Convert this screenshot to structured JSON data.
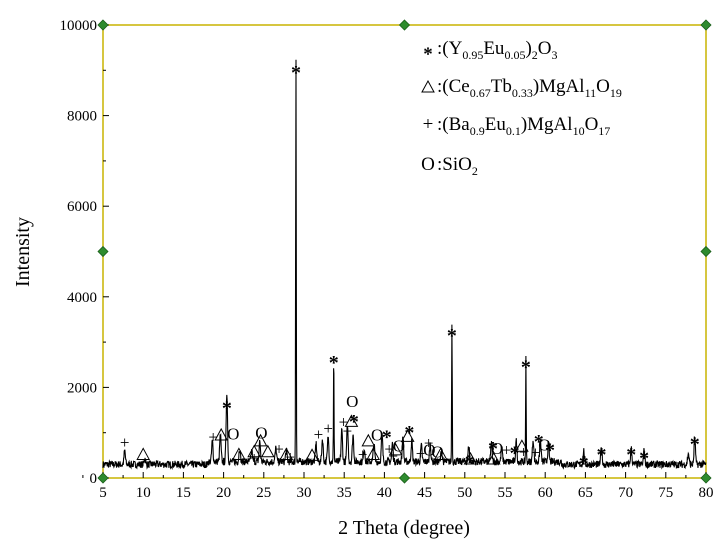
{
  "chart_data": {
    "type": "line",
    "xlabel": "2 Theta (degree)",
    "ylabel": "Intensity",
    "xlim": [
      5,
      80
    ],
    "ylim": [
      0,
      10000
    ],
    "xticks": [
      5,
      10,
      15,
      20,
      25,
      30,
      35,
      40,
      45,
      50,
      55,
      60,
      65,
      70,
      75,
      80
    ],
    "yticks": [
      0,
      2000,
      4000,
      6000,
      8000,
      10000
    ],
    "frame_color": "#c8b400",
    "handle_color": "#2e8b2e",
    "legend": [
      {
        "symbol": "*",
        "base": ":(Y",
        "parts": [
          [
            "0.95",
            "sub"
          ],
          [
            "Eu",
            ""
          ],
          [
            "0.05",
            "sub"
          ],
          [
            ")",
            ""
          ],
          [
            "2",
            "sub"
          ],
          [
            "O",
            ""
          ],
          [
            "3",
            "sub"
          ]
        ]
      },
      {
        "symbol": "triangle",
        "base": ":(Ce",
        "parts": [
          [
            "0.67",
            "sub"
          ],
          [
            "Tb",
            ""
          ],
          [
            "0.33",
            "sub"
          ],
          [
            ")MgAl",
            ""
          ],
          [
            "11",
            "sub"
          ],
          [
            "O",
            ""
          ],
          [
            "19",
            "sub"
          ]
        ]
      },
      {
        "symbol": "+",
        "base": ":(Ba",
        "parts": [
          [
            "0.9",
            "sub"
          ],
          [
            "Eu",
            ""
          ],
          [
            "0.1",
            "sub"
          ],
          [
            ")MgAl",
            ""
          ],
          [
            "10",
            "sub"
          ],
          [
            "O",
            ""
          ],
          [
            "17",
            "sub"
          ]
        ]
      },
      {
        "symbol": "O",
        "base": ":SiO",
        "parts": [
          [
            "2",
            "sub"
          ]
        ]
      }
    ],
    "legend_placement": "top-right",
    "baseline": 300,
    "series": [
      {
        "peaks": [
          [
            7.7,
            300
          ],
          [
            10.2,
            150
          ],
          [
            18.6,
            450
          ],
          [
            19.6,
            600
          ],
          [
            20.4,
            1550
          ],
          [
            22.0,
            300
          ],
          [
            23.5,
            250
          ],
          [
            24.5,
            450
          ],
          [
            26.5,
            300
          ],
          [
            27.8,
            250
          ],
          [
            29.0,
            8900
          ],
          [
            31.5,
            400
          ],
          [
            32.3,
            500
          ],
          [
            33.0,
            550
          ],
          [
            33.7,
            2350
          ],
          [
            34.7,
            700
          ],
          [
            35.4,
            800
          ],
          [
            36.1,
            600
          ],
          [
            37.5,
            300
          ],
          [
            38.7,
            400
          ],
          [
            39.7,
            600
          ],
          [
            41.0,
            400
          ],
          [
            42.3,
            550
          ],
          [
            43.4,
            450
          ],
          [
            44.6,
            350
          ],
          [
            45.7,
            400
          ],
          [
            47.1,
            250
          ],
          [
            48.4,
            3100
          ],
          [
            50.5,
            350
          ],
          [
            53.3,
            400
          ],
          [
            54.6,
            300
          ],
          [
            56.4,
            450
          ],
          [
            57.6,
            2350
          ],
          [
            58.5,
            500
          ],
          [
            59.4,
            450
          ],
          [
            60.4,
            400
          ],
          [
            64.8,
            300
          ],
          [
            67.0,
            400
          ],
          [
            70.7,
            350
          ],
          [
            72.3,
            300
          ],
          [
            77.8,
            250
          ],
          [
            78.6,
            600
          ]
        ]
      }
    ],
    "annotations": [
      {
        "symbol": "*",
        "x": 29.0,
        "y": 9050
      },
      {
        "symbol": "*",
        "x": 33.7,
        "y": 2650
      },
      {
        "symbol": "*",
        "x": 48.4,
        "y": 3250
      },
      {
        "symbol": "*",
        "x": 57.6,
        "y": 2550
      },
      {
        "symbol": "*",
        "x": 20.4,
        "y": 1650
      },
      {
        "symbol": "*",
        "x": 36.2,
        "y": 1350
      },
      {
        "symbol": "*",
        "x": 40.3,
        "y": 1000
      },
      {
        "symbol": "*",
        "x": 43.1,
        "y": 1100
      },
      {
        "symbol": "*",
        "x": 50.6,
        "y": 450
      },
      {
        "symbol": "*",
        "x": 53.5,
        "y": 750
      },
      {
        "symbol": "*",
        "x": 56.2,
        "y": 650
      },
      {
        "symbol": "*",
        "x": 59.2,
        "y": 900
      },
      {
        "symbol": "*",
        "x": 60.6,
        "y": 720
      },
      {
        "symbol": "*",
        "x": 64.8,
        "y": 420
      },
      {
        "symbol": "*",
        "x": 67.0,
        "y": 620
      },
      {
        "symbol": "*",
        "x": 70.7,
        "y": 620
      },
      {
        "symbol": "*",
        "x": 72.3,
        "y": 540
      },
      {
        "symbol": "*",
        "x": 78.6,
        "y": 850
      },
      {
        "symbol": "triangle",
        "x": 10.0,
        "y": 520
      },
      {
        "symbol": "triangle",
        "x": 19.7,
        "y": 950
      },
      {
        "symbol": "triangle",
        "x": 21.9,
        "y": 520
      },
      {
        "symbol": "triangle",
        "x": 23.8,
        "y": 580
      },
      {
        "symbol": "triangle",
        "x": 24.6,
        "y": 820
      },
      {
        "symbol": "triangle",
        "x": 25.5,
        "y": 580
      },
      {
        "symbol": "triangle",
        "x": 27.8,
        "y": 520
      },
      {
        "symbol": "triangle",
        "x": 31.0,
        "y": 500
      },
      {
        "symbol": "triangle",
        "x": 35.9,
        "y": 1250
      },
      {
        "symbol": "triangle",
        "x": 38.0,
        "y": 820
      },
      {
        "symbol": "triangle",
        "x": 38.6,
        "y": 520
      },
      {
        "symbol": "triangle",
        "x": 41.4,
        "y": 620
      },
      {
        "symbol": "triangle",
        "x": 42.9,
        "y": 920
      },
      {
        "symbol": "triangle",
        "x": 47.0,
        "y": 520
      },
      {
        "symbol": "triangle",
        "x": 50.7,
        "y": 420
      },
      {
        "symbol": "triangle",
        "x": 53.6,
        "y": 420
      },
      {
        "symbol": "triangle",
        "x": 57.1,
        "y": 700
      },
      {
        "symbol": "+",
        "x": 7.7,
        "y": 800
      },
      {
        "symbol": "+",
        "x": 18.7,
        "y": 920
      },
      {
        "symbol": "+",
        "x": 23.8,
        "y": 450
      },
      {
        "symbol": "+",
        "x": 26.9,
        "y": 650
      },
      {
        "symbol": "+",
        "x": 28.3,
        "y": 470
      },
      {
        "symbol": "+",
        "x": 31.8,
        "y": 970
      },
      {
        "symbol": "+",
        "x": 33.0,
        "y": 1100
      },
      {
        "symbol": "+",
        "x": 34.9,
        "y": 1250
      },
      {
        "symbol": "+",
        "x": 35.4,
        "y": 1050
      },
      {
        "symbol": "+",
        "x": 37.3,
        "y": 530
      },
      {
        "symbol": "+",
        "x": 40.6,
        "y": 650
      },
      {
        "symbol": "+",
        "x": 41.1,
        "y": 500
      },
      {
        "symbol": "+",
        "x": 44.5,
        "y": 550
      },
      {
        "symbol": "+",
        "x": 45.5,
        "y": 780
      },
      {
        "symbol": "+",
        "x": 55.2,
        "y": 630
      },
      {
        "symbol": "+",
        "x": 57.3,
        "y": 580
      },
      {
        "symbol": "+",
        "x": 58.8,
        "y": 570
      },
      {
        "symbol": "O",
        "x": 21.2,
        "y": 980
      },
      {
        "symbol": "O",
        "x": 24.7,
        "y": 1000
      },
      {
        "symbol": "O",
        "x": 36.0,
        "y": 1700
      },
      {
        "symbol": "O",
        "x": 39.1,
        "y": 960
      },
      {
        "symbol": "O",
        "x": 41.8,
        "y": 720
      },
      {
        "symbol": "O",
        "x": 45.6,
        "y": 630
      },
      {
        "symbol": "O",
        "x": 46.6,
        "y": 580
      },
      {
        "symbol": "O",
        "x": 54.0,
        "y": 660
      },
      {
        "symbol": "O",
        "x": 59.9,
        "y": 740
      }
    ]
  }
}
